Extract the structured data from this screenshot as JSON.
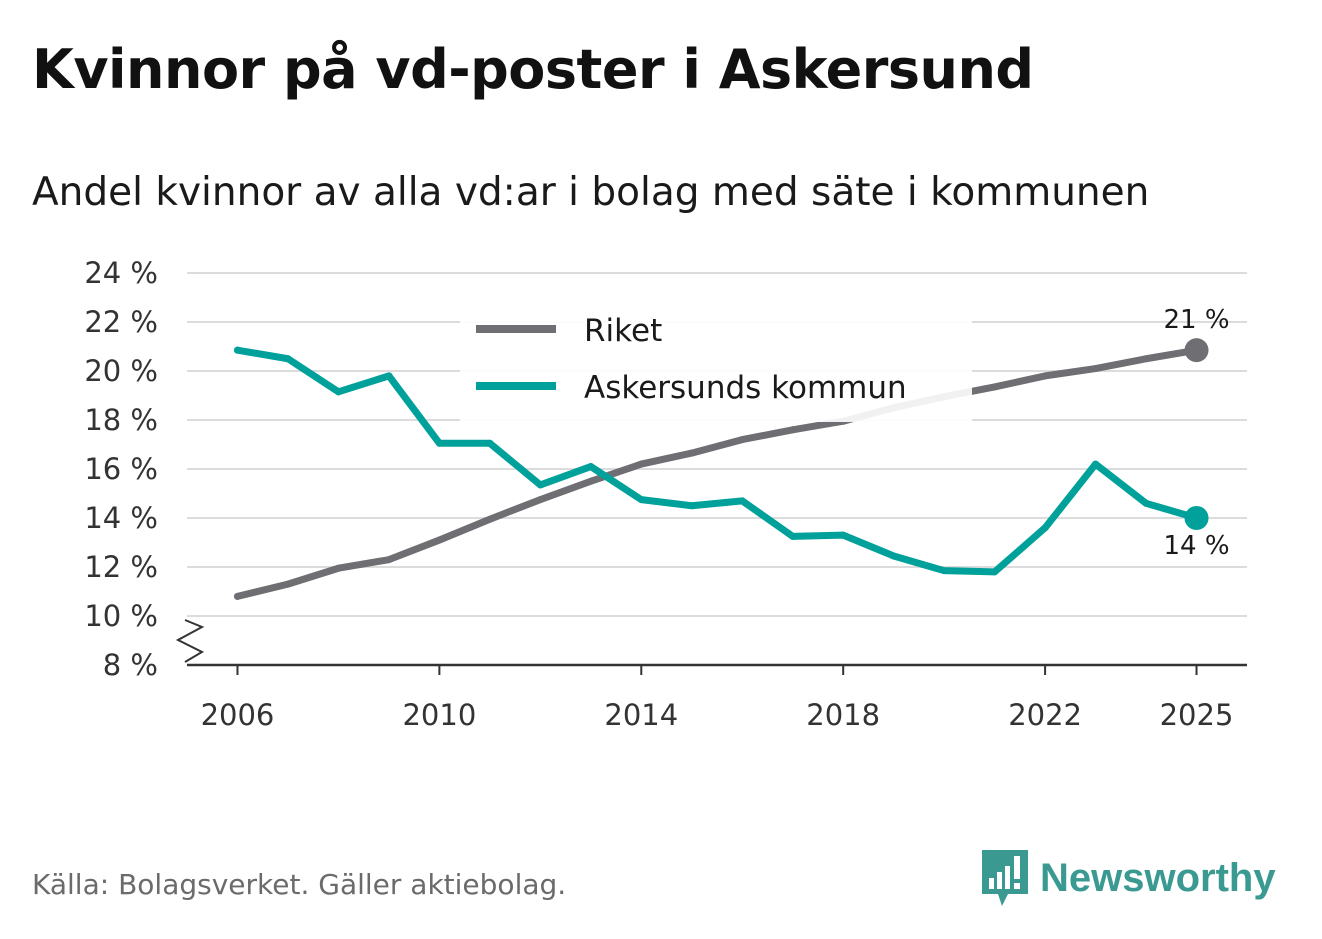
{
  "title": "Kvinnor på vd-poster i Askersund",
  "subtitle": "Andel kvinnor av alla vd:ar i bolag med säte i kommunen",
  "source": "Källa: Bolagsverket. Gäller aktiebolag.",
  "brand": {
    "name": "Newsworthy",
    "color": "#3a9a92"
  },
  "chart_data": {
    "type": "line",
    "title": "Kvinnor på vd-poster i Askersund",
    "ylim": [
      8,
      24
    ],
    "y_ticks": [
      8,
      10,
      12,
      14,
      16,
      18,
      20,
      22,
      24
    ],
    "y_tick_labels": [
      "8 %",
      "10 %",
      "12 %",
      "14 %",
      "16 %",
      "18 %",
      "20 %",
      "22 %",
      "24 %"
    ],
    "xlim": [
      2005,
      2026
    ],
    "x_ticks": [
      2006,
      2010,
      2014,
      2018,
      2022,
      2025
    ],
    "x_tick_labels": [
      "2006",
      "2010",
      "2014",
      "2018",
      "2022",
      "2025"
    ],
    "axis_break": true,
    "legend_position": "top-center",
    "x": [
      2006,
      2007,
      2008,
      2009,
      2010,
      2011,
      2012,
      2013,
      2014,
      2015,
      2016,
      2017,
      2018,
      2019,
      2020,
      2021,
      2022,
      2023,
      2024,
      2025
    ],
    "series": [
      {
        "name": "Riket",
        "color": "#6e6e73",
        "values": [
          10.8,
          11.3,
          11.95,
          12.3,
          13.1,
          13.95,
          14.75,
          15.5,
          16.2,
          16.65,
          17.2,
          17.6,
          17.95,
          18.5,
          18.95,
          19.35,
          19.8,
          20.1,
          20.5,
          20.85
        ],
        "end_label": "21 %"
      },
      {
        "name": "Askersunds kommun",
        "color": "#00a19a",
        "values": [
          20.85,
          20.5,
          19.15,
          19.8,
          17.05,
          17.05,
          15.35,
          16.1,
          14.75,
          14.5,
          14.7,
          13.25,
          13.3,
          12.45,
          11.85,
          11.8,
          13.6,
          16.2,
          14.6,
          14.0
        ],
        "end_label": "14 %"
      }
    ]
  }
}
